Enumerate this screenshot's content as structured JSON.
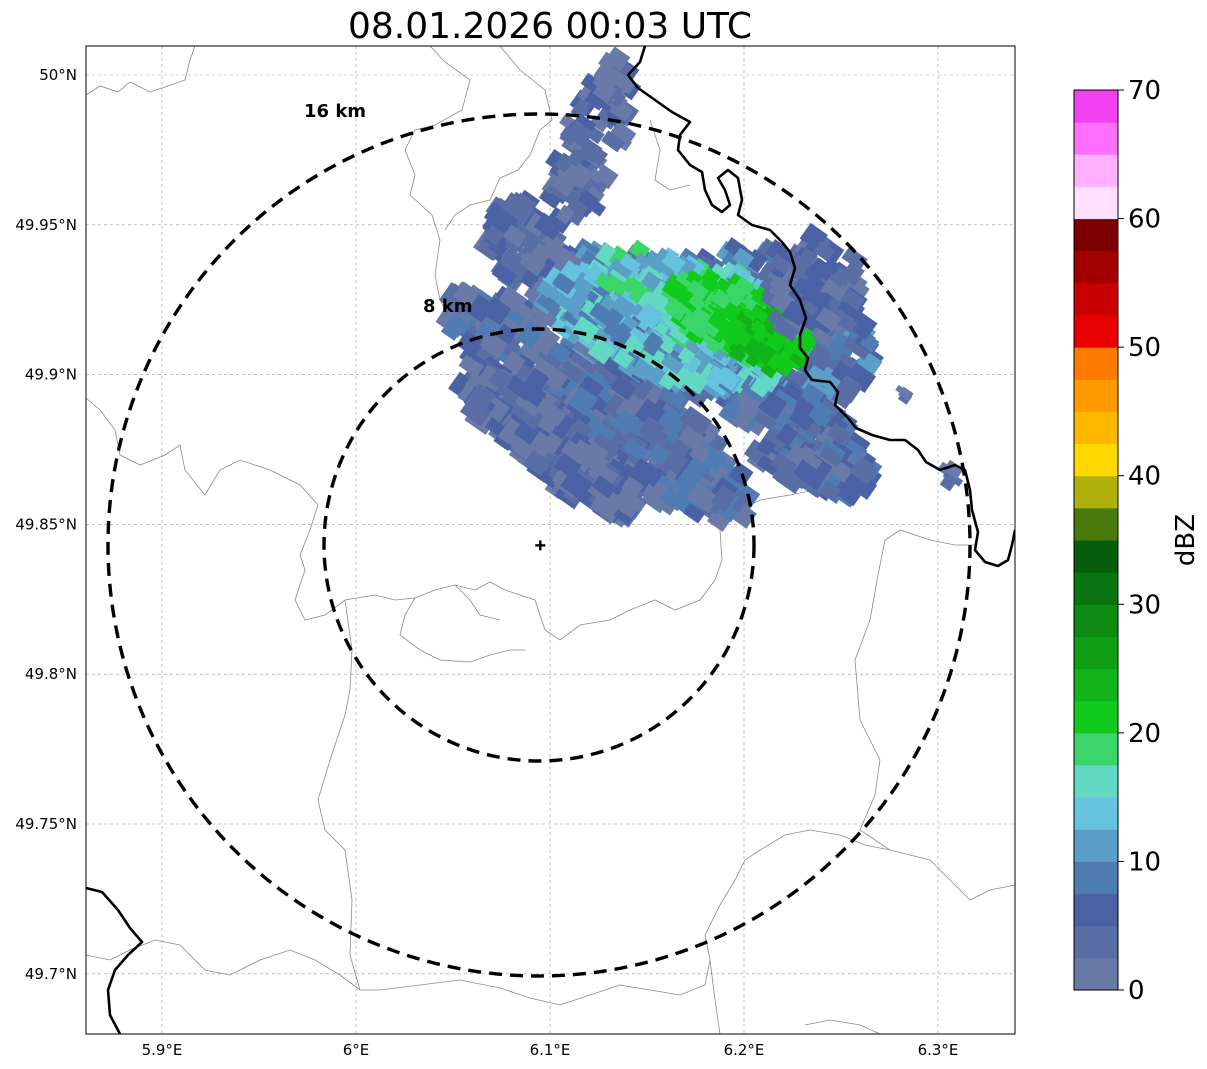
{
  "title": "08.01.2026 00:03 UTC",
  "map": {
    "lon_ticks": [
      {
        "value": 5.9,
        "label": "5.9°E"
      },
      {
        "value": 6.0,
        "label": "6°E"
      },
      {
        "value": 6.1,
        "label": "6.1°E"
      },
      {
        "value": 6.2,
        "label": "6.2°E"
      },
      {
        "value": 6.3,
        "label": "6.3°E"
      }
    ],
    "lat_ticks": [
      {
        "value": 50.0,
        "label": "50°N"
      },
      {
        "value": 49.95,
        "label": "49.95°N"
      },
      {
        "value": 49.9,
        "label": "49.9°N"
      },
      {
        "value": 49.85,
        "label": "49.85°N"
      },
      {
        "value": 49.8,
        "label": "49.8°N"
      },
      {
        "value": 49.75,
        "label": "49.75°N"
      },
      {
        "value": 49.7,
        "label": "49.7°N"
      }
    ],
    "radar_site": {
      "lon": 6.095,
      "lat": 49.843
    },
    "range_rings": [
      {
        "label": "8 km"
      },
      {
        "label": "16 km"
      }
    ]
  },
  "colorbar": {
    "label": "dBZ",
    "ticks": [
      "0",
      "10",
      "20",
      "30",
      "40",
      "50",
      "60",
      "70"
    ],
    "colors": [
      "#6a7aa8",
      "#5a6ea6",
      "#4a62a4",
      "#4f7db3",
      "#5b9fc8",
      "#66c3dd",
      "#63d8c3",
      "#3ad66a",
      "#12c91e",
      "#10b418",
      "#0e9e14",
      "#0c8a12",
      "#0a7410",
      "#065e0c",
      "#4a7a0c",
      "#b0b00a",
      "#ffd800",
      "#ffb800",
      "#ff9a00",
      "#ff7a00",
      "#e80000",
      "#c80000",
      "#a40000",
      "#7c0000",
      "#ffe0ff",
      "#ffb0ff",
      "#ff70ff",
      "#f040f0"
    ]
  }
}
